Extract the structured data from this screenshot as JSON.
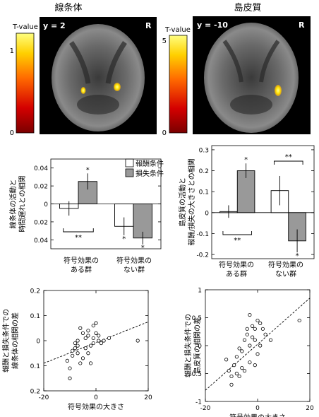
{
  "panels": {
    "left_title": "線条体",
    "right_title": "島皮質"
  },
  "brain": [
    {
      "slice": "y = 2",
      "orient": "R",
      "cbar_label": "T-value",
      "cbar_max": "1",
      "cbar_min": "0"
    },
    {
      "slice": "y = -10",
      "orient": "R",
      "cbar_label": "T-value",
      "cbar_max": "5",
      "cbar_min": "0"
    }
  ],
  "legend": {
    "reward": "報酬条件",
    "loss": "損失条件"
  },
  "chart_data": [
    {
      "type": "bar",
      "ylabel": [
        "線条体の活動と",
        "時間遅れとの相関"
      ],
      "ytick_labels": [
        "0.04",
        "0.02",
        "0",
        "0.02",
        "0.04"
      ],
      "ytick_values": [
        0.04,
        0.02,
        0,
        -0.02,
        -0.04
      ],
      "ylim": [
        -0.05,
        0.05
      ],
      "categories": [
        [
          "符号効果の",
          "ある群"
        ],
        [
          "符号効果の",
          "ない群"
        ]
      ],
      "series": [
        {
          "name": "報酬条件",
          "values": [
            -0.005,
            -0.025
          ],
          "errors": [
            0.008,
            0.01
          ]
        },
        {
          "name": "損失条件",
          "values": [
            0.025,
            -0.038
          ],
          "errors": [
            0.009,
            0.007
          ]
        }
      ],
      "bar_stars": [
        [
          "",
          "*"
        ],
        [
          "*",
          "*"
        ]
      ],
      "sig_brackets": [
        "**",
        ""
      ]
    },
    {
      "type": "bar",
      "ylabel": [
        "島皮質の活動と",
        "報酬/損失の大きさとの相関"
      ],
      "ytick_labels": [
        "0.3",
        "0.2",
        "0.1",
        "0",
        "-0.1",
        "-0.2"
      ],
      "ytick_values": [
        0.3,
        0.2,
        0.1,
        0,
        -0.1,
        -0.2
      ],
      "ylim": [
        -0.22,
        0.32
      ],
      "categories": [
        [
          "符号効果の",
          "ある群"
        ],
        [
          "符号効果の",
          "ない群"
        ]
      ],
      "series": [
        {
          "name": "報酬条件",
          "values": [
            0.005,
            0.105
          ],
          "errors": [
            0.03,
            0.07
          ]
        },
        {
          "name": "損失条件",
          "values": [
            0.2,
            -0.135
          ],
          "errors": [
            0.035,
            0.055
          ]
        }
      ],
      "bar_stars": [
        [
          "",
          "*"
        ],
        [
          "",
          "*"
        ]
      ],
      "sig_brackets": [
        "**",
        "**"
      ]
    },
    {
      "type": "scatter",
      "xlabel": "符号効果の大きさ",
      "ylabel": [
        "報酬と損失条件での",
        "線条体の相関の差"
      ],
      "xlim": [
        -20,
        20
      ],
      "ylim": [
        -0.2,
        0.2
      ],
      "xticks": [
        -20,
        0,
        20
      ],
      "yticks": [
        0.2,
        0.1,
        0,
        0.1,
        0.2
      ],
      "ytick_values": [
        0.2,
        0.1,
        0,
        -0.1,
        -0.2
      ],
      "x": [
        -11,
        -10,
        -10,
        -9,
        -9,
        -8,
        -8,
        -7,
        -7,
        -7,
        -6,
        -6,
        -5,
        -5,
        -4,
        -4,
        -3,
        -3,
        -3,
        -2,
        -2,
        -1,
        -1,
        -1,
        0,
        0,
        1,
        1,
        2,
        3,
        5,
        16
      ],
      "y": [
        -0.08,
        -0.11,
        -0.15,
        -0.04,
        -0.06,
        -0.03,
        -0.01,
        -0.02,
        -0.05,
        0.0,
        0.05,
        -0.09,
        -0.07,
        0.03,
        -0.03,
        0.01,
        -0.05,
        0.02,
        0.04,
        -0.02,
        -0.09,
        0.06,
        0.01,
        -0.01,
        0.03,
        0.07,
        0.0,
        0.02,
        -0.01,
        0.0,
        0.01,
        0.0
      ],
      "fit": {
        "x": [
          -20,
          20
        ],
        "y": [
          -0.09,
          0.075
        ]
      }
    },
    {
      "type": "scatter",
      "xlabel": "符号効果の大きさ",
      "ylabel": [
        "報酬と損失条件での",
        "島皮質の相関の差"
      ],
      "xlim": [
        -20,
        20
      ],
      "ylim": [
        -1,
        1
      ],
      "xticks": [
        -20,
        0,
        20
      ],
      "yticks": [
        1,
        0.5,
        0,
        -0.5,
        -1
      ],
      "ytick_values": [
        1,
        0.5,
        0,
        -0.5,
        -1
      ],
      "x": [
        -12,
        -11,
        -10,
        -10,
        -9,
        -8,
        -8,
        -7,
        -7,
        -6,
        -6,
        -5,
        -5,
        -4,
        -4,
        -3,
        -3,
        -3,
        -2,
        -2,
        -1,
        -1,
        -1,
        0,
        0,
        1,
        1,
        2,
        3,
        5,
        16
      ],
      "y": [
        -0.25,
        -0.45,
        -0.55,
        -0.7,
        -0.35,
        -0.5,
        -0.2,
        -0.55,
        -0.05,
        -0.4,
        -0.1,
        0.1,
        -0.45,
        0.3,
        0.2,
        0.55,
        0.0,
        -0.3,
        0.35,
        0.15,
        -0.35,
        0.1,
        0.3,
        0.45,
        -0.15,
        0.4,
        0.0,
        0.3,
        0.2,
        0.1,
        0.45
      ],
      "fit": {
        "x": [
          -20,
          20
        ],
        "y": [
          -0.8,
          0.85
        ]
      }
    }
  ]
}
